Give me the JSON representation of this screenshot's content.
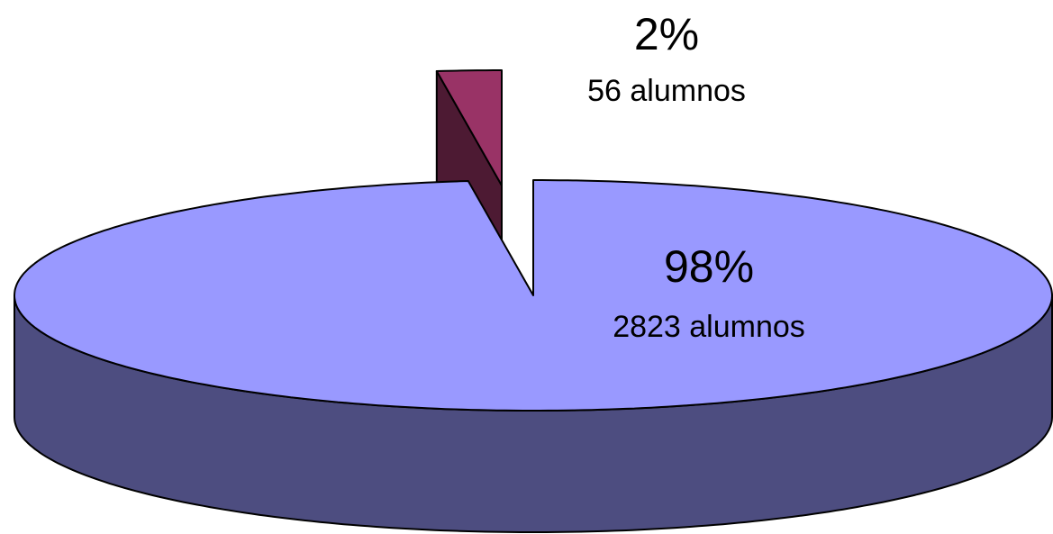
{
  "chart_data": {
    "type": "pie3d",
    "values": [
      98,
      2
    ],
    "value_labels": [
      "98%",
      "2%"
    ],
    "counts": [
      2823,
      56
    ],
    "count_labels": [
      "2823 alumnos",
      "56 alumnos"
    ],
    "colors": [
      "#9999ff",
      "#993366"
    ],
    "explode": [
      false,
      true
    ]
  }
}
